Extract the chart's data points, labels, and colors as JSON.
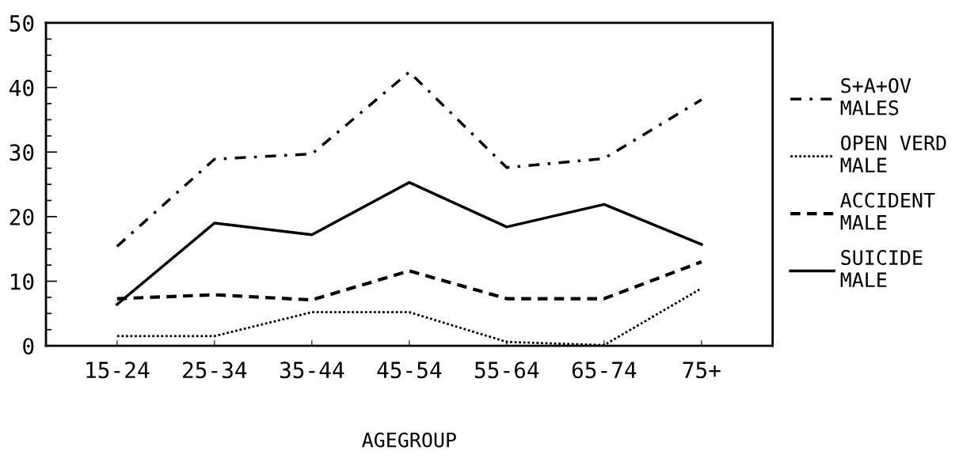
{
  "chart_data": {
    "type": "line",
    "xlabel": "AGEGROUP",
    "categories": [
      "15-24",
      "25-34",
      "35-44",
      "45-54",
      "55-64",
      "65-74",
      "75+"
    ],
    "series": [
      {
        "name": "S+A+OV\nMALES",
        "color": "#000000",
        "line_style": "dashdot",
        "values": [
          15.4,
          28.9,
          29.7,
          42.4,
          27.6,
          29.0,
          38.1
        ]
      },
      {
        "name": "OPEN VERD\nMALE",
        "color": "#000000",
        "line_style": "dotted",
        "values": [
          1.5,
          1.5,
          5.2,
          5.2,
          0.6,
          0.1,
          8.9
        ]
      },
      {
        "name": "ACCIDENT\nMALE",
        "color": "#000000",
        "line_style": "dashed",
        "values": [
          7.3,
          7.9,
          7.1,
          11.6,
          7.3,
          7.3,
          13.0
        ]
      },
      {
        "name": "SUICIDE\nMALE",
        "color": "#000000",
        "line_style": "solid",
        "values": [
          6.4,
          19.0,
          17.2,
          25.3,
          18.4,
          21.9,
          15.7
        ]
      }
    ],
    "ylim": [
      0,
      50
    ],
    "yticks": [
      0,
      {
        "value": 2.5,
        "label": null
      },
      {
        "value": 5,
        "label": null
      },
      {
        "value": 7.5,
        "label": null
      },
      10,
      {
        "value": 12.5,
        "label": null
      },
      {
        "value": 15,
        "label": null
      },
      {
        "value": 17.5,
        "label": null
      },
      20,
      {
        "value": 22.5,
        "label": null
      },
      {
        "value": 25,
        "label": null
      },
      {
        "value": 27.5,
        "label": null
      },
      30,
      {
        "value": 32.5,
        "label": null
      },
      {
        "value": 35,
        "label": null
      },
      {
        "value": 37.5,
        "label": null
      },
      40,
      {
        "value": 42.5,
        "label": null
      },
      {
        "value": 45,
        "label": null
      },
      {
        "value": 47.5,
        "label": null
      },
      50
    ],
    "grid": false,
    "legend": "right",
    "marker": "none"
  }
}
